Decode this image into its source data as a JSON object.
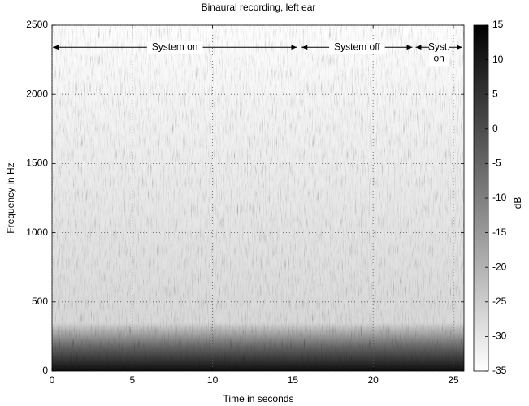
{
  "chart_data": {
    "type": "spectrogram",
    "title": "Binaural recording, left ear",
    "x_label": "Time in seconds",
    "y_label": "Frequency in Hz",
    "xlim": [
      0,
      25.66
    ],
    "xticks": [
      0,
      5,
      10,
      15,
      20,
      25
    ],
    "ylim": [
      0,
      2500
    ],
    "yticks": [
      0,
      500,
      1000,
      1500,
      2000,
      2500
    ],
    "grid": true,
    "colormap": "gray_r",
    "colorbar": {
      "label": "dB",
      "lim": [
        -35,
        15
      ],
      "ticks": [
        -35,
        -30,
        -25,
        -20,
        -15,
        -10,
        -5,
        0,
        5,
        10,
        15
      ]
    },
    "annotations": [
      {
        "text": "System on",
        "x": [
          0,
          15.3
        ],
        "y": 2340
      },
      {
        "text": "System off",
        "x": [
          15.5,
          22.5
        ],
        "y": 2340
      },
      {
        "text": "Syst. on",
        "x": [
          22.6,
          25.6
        ],
        "y": 2340
      }
    ]
  }
}
